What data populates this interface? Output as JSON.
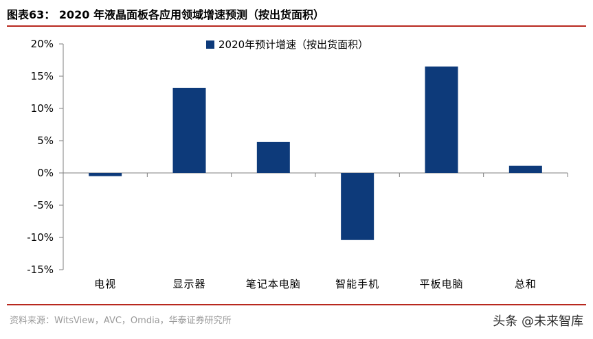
{
  "figure": {
    "title": "图表63： 2020 年液晶面板各应用领域增速预测（按出货面积）",
    "source": "资料来源：WitsView，AVC，Omdia，华泰证券研究所",
    "watermark": "头条 @未来智库"
  },
  "colors": {
    "bar": "#0d3a7a",
    "accent_rule": "#b8281e",
    "axis": "#7f7f7f"
  },
  "chart_data": {
    "type": "bar",
    "categories": [
      "电视",
      "显示器",
      "笔记本电脑",
      "智能手机",
      "平板电脑",
      "总和"
    ],
    "series": [
      {
        "name": "2020年预计增速（按出货面积）",
        "values": [
          -0.5,
          13.2,
          4.8,
          -10.4,
          16.5,
          1.1
        ]
      }
    ],
    "unit": "%",
    "ylim": [
      -15,
      20
    ],
    "yticks": [
      20,
      15,
      10,
      5,
      0,
      -5,
      -10,
      -15
    ],
    "ytick_labels": [
      "20%",
      "15%",
      "10%",
      "5%",
      "0%",
      "-5%",
      "-10%",
      "-15%"
    ],
    "xlabel": "",
    "ylabel": "",
    "grid": false,
    "legend_position": "top-center"
  }
}
